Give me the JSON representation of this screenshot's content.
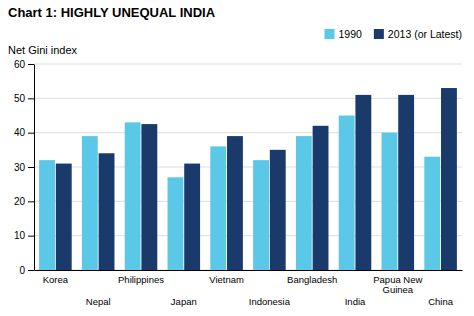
{
  "chart_data": {
    "type": "bar",
    "title": "Chart 1: HIGHLY UNEQUAL INDIA",
    "ylabel": "Net Gini index",
    "categories": [
      "Korea",
      "Nepal",
      "Philippines",
      "Japan",
      "Vietnam",
      "Indonesia",
      "Bangladesh",
      "India",
      "Papua New\nGuinea",
      "China"
    ],
    "series": [
      {
        "name": "1990",
        "color": "#5BC8E8",
        "values": [
          32,
          39,
          43,
          27,
          36,
          32,
          39,
          45,
          40,
          33
        ]
      },
      {
        "name": "2013 (or Latest)",
        "color": "#1A3A6B",
        "values": [
          31,
          34,
          42.5,
          31,
          39,
          35,
          42,
          51,
          51,
          53
        ]
      }
    ],
    "ylim": [
      0,
      60
    ],
    "yticks": [
      0,
      10,
      20,
      30,
      40,
      50,
      60
    ],
    "grid": true,
    "legend": "upper right"
  }
}
